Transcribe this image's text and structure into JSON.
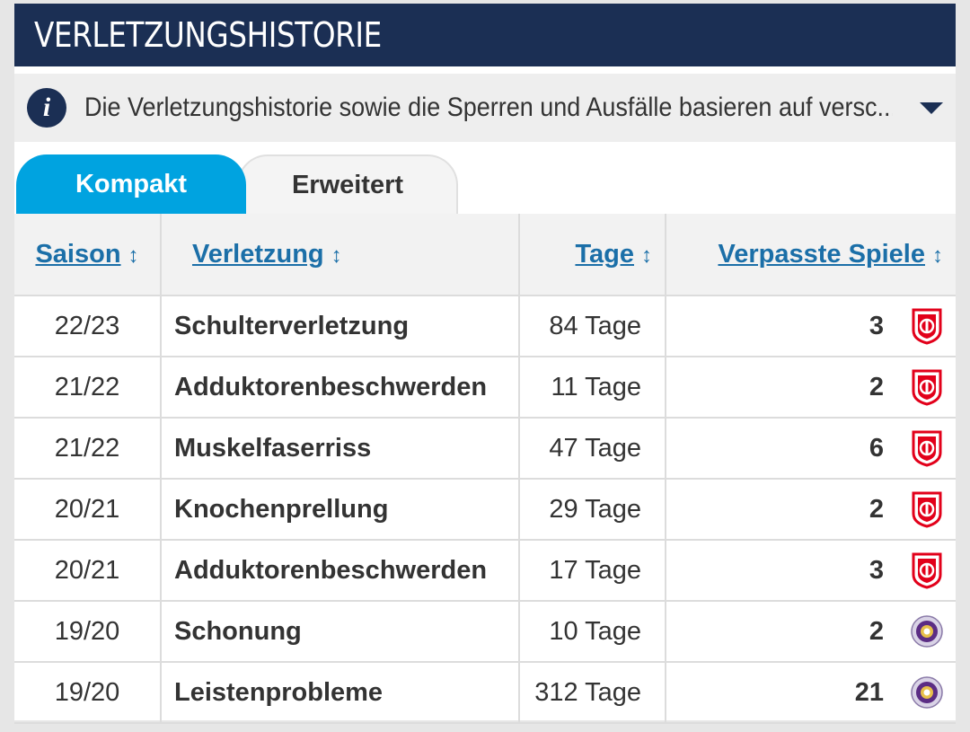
{
  "header": {
    "title": "VERLETZUNGSHISTORIE"
  },
  "info": {
    "text": "Die Verletzungshistorie sowie die Sperren und Ausfälle basieren auf versc..."
  },
  "tabs": [
    {
      "label": "Kompakt",
      "active": true
    },
    {
      "label": "Erweitert",
      "active": false
    }
  ],
  "table": {
    "columns": [
      "Saison",
      "Verletzung",
      "Tage",
      "Verpasste Spiele"
    ],
    "rows": [
      {
        "saison": "22/23",
        "verletzung": "Schulterverletzung",
        "tage": "84 Tage",
        "spiele": "3",
        "club": "regensburg-icon"
      },
      {
        "saison": "21/22",
        "verletzung": "Adduktorenbeschwerden",
        "tage": "11 Tage",
        "spiele": "2",
        "club": "regensburg-icon"
      },
      {
        "saison": "21/22",
        "verletzung": "Muskelfaserriss",
        "tage": "47 Tage",
        "spiele": "6",
        "club": "regensburg-icon"
      },
      {
        "saison": "20/21",
        "verletzung": "Knochenprellung",
        "tage": "29 Tage",
        "spiele": "2",
        "club": "regensburg-icon"
      },
      {
        "saison": "20/21",
        "verletzung": "Adduktorenbeschwerden",
        "tage": "17 Tage",
        "spiele": "3",
        "club": "regensburg-icon"
      },
      {
        "saison": "19/20",
        "verletzung": "Schonung",
        "tage": "10 Tage",
        "spiele": "2",
        "club": "aue-icon"
      },
      {
        "saison": "19/20",
        "verletzung": "Leistenprobleme",
        "tage": "312 Tage",
        "spiele": "21",
        "club": "aue-icon"
      }
    ]
  },
  "colors": {
    "header_bg": "#1b2f54",
    "tab_active": "#00a3e0",
    "link": "#1b6fa8",
    "badge_red": "#e2001a",
    "badge_purple": "#5b2d84"
  }
}
